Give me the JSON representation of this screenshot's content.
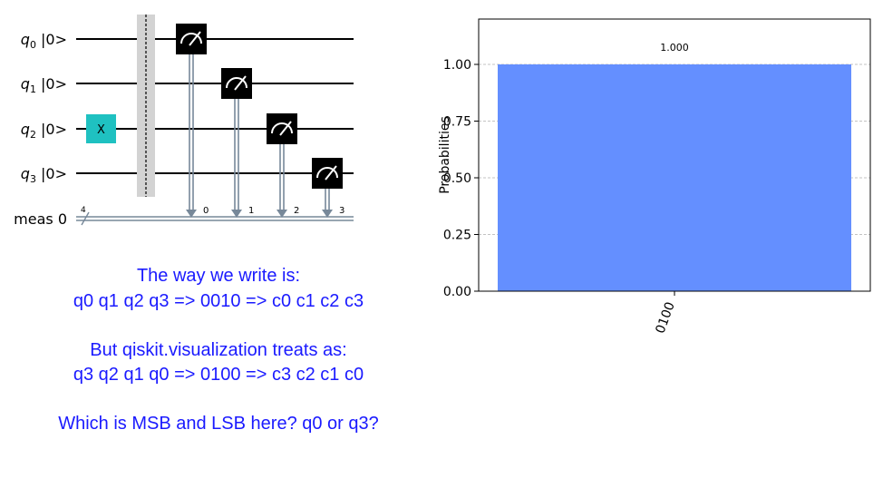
{
  "circuit": {
    "qubits": [
      {
        "name": "q",
        "sub": "0",
        "ket": " |0>"
      },
      {
        "name": "q",
        "sub": "1",
        "ket": " |0>"
      },
      {
        "name": "q",
        "sub": "2",
        "ket": " |0>"
      },
      {
        "name": "q",
        "sub": "3",
        "ket": " |0>"
      }
    ],
    "creg_label": "meas 0",
    "creg_width": "4",
    "x_gate": {
      "label": "X",
      "qubit": 2
    },
    "measure_bits": [
      "0",
      "1",
      "2",
      "3"
    ],
    "colors": {
      "x_gate": "#1fc1c1",
      "measure": "#000000",
      "barrier": "#d3d3d3",
      "classical": "#778899"
    }
  },
  "notes": {
    "line1": "The way we write is:",
    "line2": "q0 q1 q2 q3  => 0010 => c0 c1 c2 c3",
    "line3": "But qiskit.visualization treats as:",
    "line4": "q3 q2 q1 q0 => 0100 => c3 c2 c1 c0",
    "line5": "Which is MSB and LSB here? q0 or q3?"
  },
  "chart_data": {
    "type": "bar",
    "categories": [
      "0100"
    ],
    "values": [
      1.0
    ],
    "value_labels": [
      "1.000"
    ],
    "ylabel": "Probabilities",
    "ylim": [
      0,
      1.2
    ],
    "yticks": [
      "0.00",
      "0.25",
      "0.50",
      "0.75",
      "1.00"
    ],
    "grid": "horizontal dashed",
    "bar_color": "#648fff"
  }
}
